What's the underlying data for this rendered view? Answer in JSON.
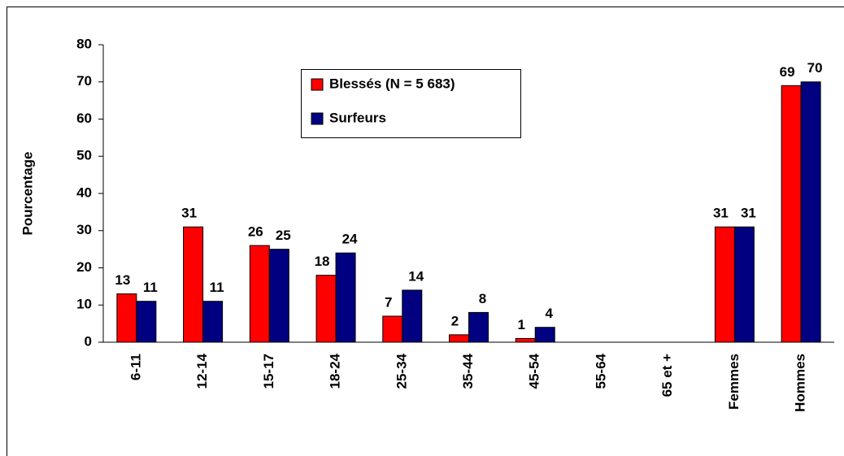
{
  "chart_data": {
    "type": "bar",
    "y_label": "Pourcentage",
    "categories": [
      "6-11",
      "12-14",
      "15-17",
      "18-24",
      "25-34",
      "35-44",
      "45-54",
      "55-64",
      "65 et +",
      "Femmes",
      "Hommes"
    ],
    "series": [
      {
        "name": "Blessés (N = 5 683)",
        "color": "#ff0000",
        "values": [
          13,
          31,
          26,
          18,
          7,
          2,
          1,
          null,
          null,
          31,
          69
        ]
      },
      {
        "name": "Surfeurs",
        "color": "#000080",
        "values": [
          11,
          11,
          25,
          24,
          14,
          8,
          4,
          null,
          null,
          31,
          70
        ]
      }
    ],
    "ylim": [
      0,
      80
    ],
    "yticks": [
      0,
      10,
      20,
      30,
      40,
      50,
      60,
      70,
      80
    ]
  }
}
